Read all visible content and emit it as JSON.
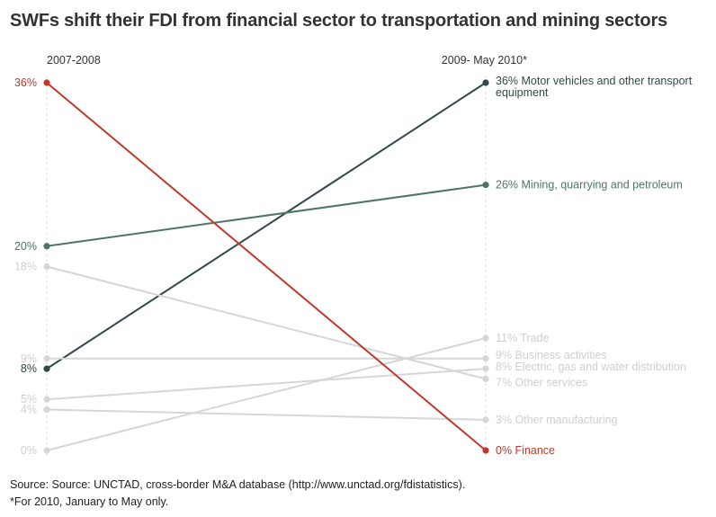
{
  "chart_data": {
    "type": "slope",
    "title": "SWFs shift their FDI from financial sector to transportation and mining sectors",
    "periods": [
      "2007-2008",
      "2009- May 2010*"
    ],
    "unit": "%",
    "series": [
      {
        "name": "Motor vehicles and other transport equipment",
        "start": 8,
        "end": 36,
        "start_label": "8%",
        "end_label": "36%",
        "color": "#2e4a48"
      },
      {
        "name": "Mining, quarrying and petroleum",
        "start": 20,
        "end": 26,
        "start_label": "20%",
        "end_label": "26%",
        "color": "#4f7566"
      },
      {
        "name": "Trade",
        "start": 0,
        "end": 11,
        "start_label": "0%",
        "end_label": "11%",
        "color": "#d6d6d6"
      },
      {
        "name": "Business activities",
        "start": 9,
        "end": 9,
        "start_label": "9%",
        "end_label": "9%",
        "color": "#d6d6d6"
      },
      {
        "name": "Electric, gas and water distribution",
        "start": 5,
        "end": 8,
        "start_label": "5%",
        "end_label": "8%",
        "color": "#d6d6d6"
      },
      {
        "name": "Other services",
        "start": 18,
        "end": 7,
        "start_label": "18%",
        "end_label": "7%",
        "color": "#d6d6d6"
      },
      {
        "name": "Other manufacturing",
        "start": 4,
        "end": 3,
        "start_label": "4%",
        "end_label": "3%",
        "color": "#d6d6d6"
      },
      {
        "name": "Finance",
        "start": 36,
        "end": 0,
        "start_label": "36%",
        "end_label": "0%",
        "color": "#c0392b"
      }
    ],
    "ylim": [
      0,
      36
    ]
  },
  "footer": {
    "source": "Source: Source: UNCTAD, cross-border M&A database (http://www.unctad.org/fdistatistics).",
    "note": "*For 2010, January to May only."
  }
}
